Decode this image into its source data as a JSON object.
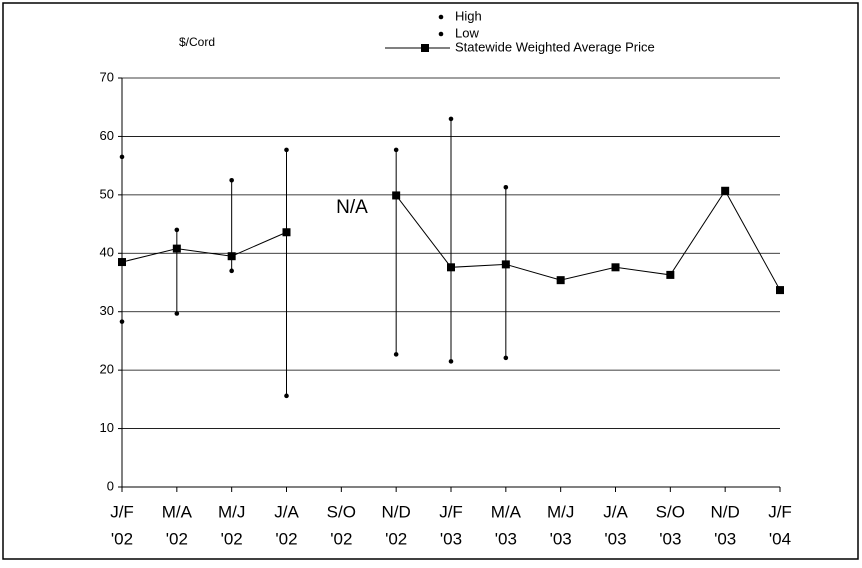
{
  "chart_data": {
    "type": "hilo-line",
    "y_label": "$/Cord",
    "annotation": "N/A",
    "categories": [
      [
        "J/F",
        "'02"
      ],
      [
        "M/A",
        "'02"
      ],
      [
        "M/J",
        "'02"
      ],
      [
        "J/A",
        "'02"
      ],
      [
        "S/O",
        "'02"
      ],
      [
        "N/D",
        "'02"
      ],
      [
        "J/F",
        "'03"
      ],
      [
        "M/A",
        "'03"
      ],
      [
        "M/J",
        "'03"
      ],
      [
        "J/A",
        "'03"
      ],
      [
        "S/O",
        "'03"
      ],
      [
        "N/D",
        "'03"
      ],
      [
        "J/F",
        "'04"
      ]
    ],
    "series": [
      {
        "name": "High",
        "color": "#000000",
        "values": [
          56.5,
          44,
          52.5,
          57.7,
          null,
          57.7,
          63,
          51.3,
          null,
          null,
          null,
          null,
          null
        ]
      },
      {
        "name": "Low",
        "color": "#000000",
        "values": [
          28.3,
          29.7,
          37,
          15.6,
          null,
          22.7,
          21.5,
          22.1,
          null,
          null,
          null,
          null,
          null
        ]
      },
      {
        "name": "Statewide Weighted Average Price",
        "color": "#000000",
        "values": [
          38.5,
          40.8,
          39.5,
          43.6,
          null,
          49.9,
          37.6,
          38.1,
          35.4,
          37.6,
          36.3,
          50.7,
          33.7
        ]
      }
    ],
    "ylim": [
      0,
      70
    ],
    "yticks": [
      0,
      10,
      20,
      30,
      40,
      50,
      60,
      70
    ],
    "grid": true
  }
}
